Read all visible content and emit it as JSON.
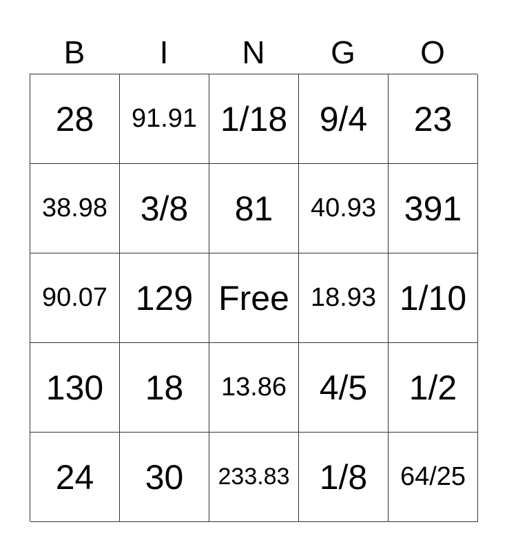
{
  "header": [
    "B",
    "I",
    "N",
    "G",
    "O"
  ],
  "cells": [
    [
      "28",
      "91.91",
      "1/18",
      "9/4",
      "23"
    ],
    [
      "38.98",
      "3/8",
      "81",
      "40.93",
      "391"
    ],
    [
      "90.07",
      "129",
      "Free",
      "18.93",
      "1/10"
    ],
    [
      "130",
      "18",
      "13.86",
      "4/5",
      "1/2"
    ],
    [
      "24",
      "30",
      "233.83",
      "1/8",
      "64/25"
    ]
  ]
}
